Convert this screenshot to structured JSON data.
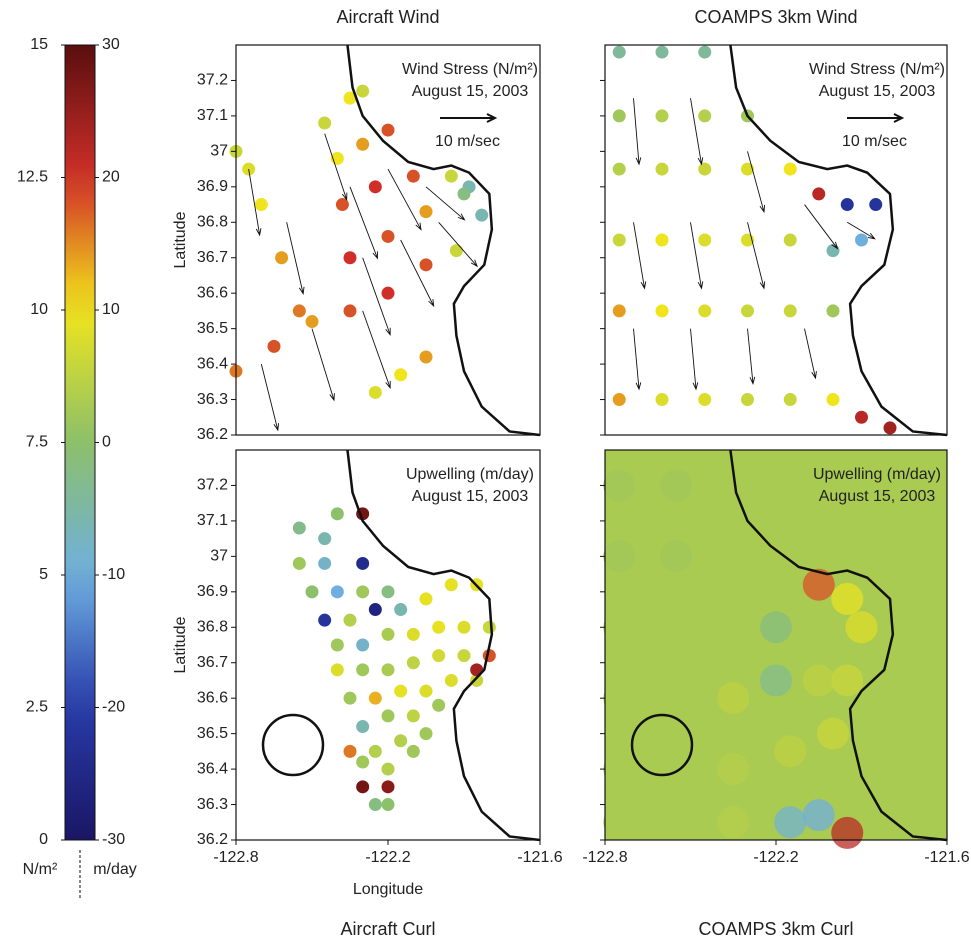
{
  "chart_data": [
    {
      "type": "colorbar",
      "left_lim": [
        0,
        15
      ],
      "left_ticks": [
        0,
        2.5,
        5,
        7.5,
        10,
        12.5,
        15
      ],
      "right_lim": [
        -30,
        30
      ],
      "right_ticks": [
        -30,
        -20,
        -10,
        0,
        10,
        20,
        30
      ],
      "left_unit": "N/m²",
      "right_unit": "m/day"
    },
    {
      "type": "scatter",
      "title": "Aircraft Wind",
      "annotation": [
        "Wind Stress (N/m²)",
        "August 15, 2003"
      ],
      "scale_label": "10 m/sec",
      "scale_value": 10,
      "ylabel": "Latitude",
      "colorbar": "left",
      "xlim": [
        -122.8,
        -121.6
      ],
      "ylim": [
        36.2,
        37.3
      ],
      "yticks": [
        36.2,
        36.3,
        36.4,
        36.5,
        36.6,
        36.7,
        36.8,
        36.9,
        37,
        37.1,
        37.2
      ],
      "x": [
        -122.8,
        -122.75,
        -122.7,
        -122.62,
        -122.55,
        -122.45,
        -122.35,
        -122.3,
        -122.4,
        -122.3,
        -122.2,
        -122.38,
        -122.25,
        -122.1,
        -121.95,
        -121.88,
        -122.35,
        -122.2,
        -122.05,
        -121.9,
        -121.83,
        -122.35,
        -122.2,
        -122.05,
        -121.93,
        -122.8,
        -122.65,
        -122.5,
        -122.25,
        -122.15,
        -122.05
      ],
      "y": [
        37.0,
        36.95,
        36.85,
        36.7,
        36.55,
        37.08,
        37.15,
        37.17,
        36.98,
        37.02,
        37.06,
        36.85,
        36.9,
        36.93,
        36.93,
        36.9,
        36.7,
        36.76,
        36.83,
        36.88,
        36.82,
        36.55,
        36.6,
        36.68,
        36.72,
        36.38,
        36.45,
        36.52,
        36.32,
        36.37,
        36.42
      ],
      "values": [
        9,
        9.5,
        10,
        11,
        11.5,
        9,
        10,
        9,
        10,
        11,
        12,
        12,
        12.5,
        12,
        9,
        6,
        12.5,
        12,
        11,
        7,
        6,
        12,
        12.5,
        12,
        9,
        11.5,
        12,
        11,
        9.5,
        10,
        11
      ],
      "vectors": {
        "x": [
          -122.75,
          -122.6,
          -122.45,
          -122.35,
          -122.2,
          -122.05,
          -122.3,
          -122.15,
          -122.0,
          -122.7,
          -122.5,
          -122.3
        ],
        "y": [
          36.95,
          36.8,
          37.05,
          36.9,
          36.95,
          36.9,
          36.7,
          36.75,
          36.8,
          36.4,
          36.5,
          36.55
        ],
        "u": [
          2,
          3,
          4,
          5,
          6,
          7,
          5,
          6,
          7,
          3,
          4,
          5
        ],
        "v": [
          -12,
          -13,
          -12,
          -13,
          -11,
          -6,
          -14,
          -12,
          -8,
          -12,
          -13,
          -14
        ]
      }
    },
    {
      "type": "scatter",
      "title": "COAMPS 3km Wind",
      "annotation": [
        "Wind Stress (N/m²)",
        "August 15, 2003"
      ],
      "scale_label": "10 m/sec",
      "scale_value": 10,
      "colorbar": "left",
      "xlim": [
        -122.8,
        -121.6
      ],
      "ylim": [
        36.2,
        37.3
      ],
      "yticks": [
        36.2,
        36.3,
        36.4,
        36.5,
        36.6,
        36.7,
        36.8,
        36.9,
        37,
        37.1,
        37.2
      ],
      "x": [
        -122.75,
        -122.6,
        -122.45,
        -122.75,
        -122.6,
        -122.45,
        -122.3,
        -122.75,
        -122.6,
        -122.45,
        -122.3,
        -122.15,
        -122.05,
        -121.95,
        -121.85,
        -122.75,
        -122.6,
        -122.45,
        -122.3,
        -122.15,
        -122.0,
        -121.9,
        -122.75,
        -122.6,
        -122.45,
        -122.3,
        -122.15,
        -122.0,
        -122.75,
        -122.6,
        -122.45,
        -122.3,
        -122.15,
        -122.0,
        -121.9,
        -121.8
      ],
      "y": [
        37.28,
        37.28,
        37.28,
        37.1,
        37.1,
        37.1,
        37.1,
        36.95,
        36.95,
        36.95,
        36.95,
        36.95,
        36.88,
        36.85,
        36.85,
        36.75,
        36.75,
        36.75,
        36.75,
        36.75,
        36.72,
        36.75,
        36.55,
        36.55,
        36.55,
        36.55,
        36.55,
        36.55,
        36.3,
        36.3,
        36.3,
        36.3,
        36.3,
        36.3,
        36.25,
        36.22
      ],
      "values": [
        6.5,
        6.5,
        6.5,
        8,
        8.5,
        8.5,
        8,
        8.5,
        9,
        9,
        9.5,
        10,
        13,
        2,
        2,
        9,
        10,
        9.5,
        9.5,
        9,
        6,
        5,
        11,
        10,
        9.5,
        9,
        9,
        8,
        11,
        9.5,
        9.5,
        9,
        9,
        10,
        13,
        13.5
      ],
      "vectors": {
        "x": [
          -122.7,
          -122.5,
          -122.3,
          -122.7,
          -122.5,
          -122.3,
          -122.1,
          -122.7,
          -122.5,
          -122.3,
          -122.1,
          -121.95
        ],
        "y": [
          37.15,
          37.15,
          37.0,
          36.8,
          36.8,
          36.8,
          36.85,
          36.5,
          36.5,
          36.5,
          36.5,
          36.8
        ],
        "u": [
          1,
          2,
          3,
          2,
          2,
          3,
          6,
          1,
          1,
          1,
          2,
          5
        ],
        "v": [
          -12,
          -12,
          -11,
          -12,
          -12,
          -12,
          -8,
          -11,
          -11,
          -10,
          -9,
          -3
        ]
      }
    },
    {
      "type": "scatter",
      "title": "Aircraft Curl",
      "annotation": [
        "Upwelling (m/day)",
        "August 15, 2003"
      ],
      "ylabel": "Latitude",
      "xlabel": "Longitude",
      "colorbar": "right",
      "xlim": [
        -122.8,
        -121.6
      ],
      "ylim": [
        36.2,
        37.3
      ],
      "yticks": [
        36.2,
        36.3,
        36.4,
        36.5,
        36.6,
        36.7,
        36.8,
        36.9,
        37,
        37.1,
        37.2
      ],
      "xticks": [
        -122.8,
        -122.2,
        -121.6
      ],
      "x": [
        -122.55,
        -122.45,
        -122.4,
        -122.3,
        -122.55,
        -122.45,
        -122.3,
        -122.5,
        -122.4,
        -122.3,
        -122.2,
        -122.45,
        -122.35,
        -122.25,
        -122.15,
        -122.05,
        -121.95,
        -121.85,
        -122.4,
        -122.3,
        -122.2,
        -122.1,
        -122.0,
        -121.9,
        -121.8,
        -122.4,
        -122.3,
        -122.2,
        -122.1,
        -122.0,
        -121.9,
        -121.8,
        -122.35,
        -122.25,
        -122.15,
        -122.05,
        -121.95,
        -121.85,
        -122.3,
        -122.2,
        -122.1,
        -122.0,
        -121.85,
        -122.35,
        -122.25,
        -122.15,
        -122.05,
        -122.3,
        -122.2,
        -122.1,
        -122.3,
        -122.2,
        -122.25,
        -122.2
      ],
      "y": [
        37.08,
        37.05,
        37.12,
        37.12,
        36.98,
        36.98,
        36.98,
        36.9,
        36.9,
        36.9,
        36.9,
        36.82,
        36.82,
        36.85,
        36.85,
        36.88,
        36.92,
        36.92,
        36.75,
        36.75,
        36.78,
        36.78,
        36.8,
        36.8,
        36.8,
        36.68,
        36.68,
        36.68,
        36.7,
        36.72,
        36.72,
        36.72,
        36.6,
        36.6,
        36.62,
        36.62,
        36.65,
        36.65,
        36.52,
        36.55,
        36.55,
        36.58,
        36.68,
        36.45,
        36.45,
        36.48,
        36.5,
        36.42,
        36.4,
        36.45,
        36.35,
        36.35,
        36.3,
        36.3
      ],
      "values": [
        -3,
        -6,
        0,
        28,
        2,
        -8,
        -24,
        0,
        -10,
        2,
        -2,
        -22,
        4,
        -26,
        -6,
        9,
        9,
        9,
        2,
        -8,
        3,
        8,
        9,
        8,
        6,
        8,
        2,
        3,
        5,
        7,
        6,
        18,
        2,
        13,
        9,
        8,
        8,
        6,
        -6,
        2,
        5,
        2,
        24,
        16,
        4,
        4,
        2,
        2,
        4,
        2,
        28,
        26,
        -2,
        0
      ]
    },
    {
      "type": "scatter",
      "title": "COAMPS 3km Curl",
      "annotation": [
        "Upwelling (m/day)",
        "August 15, 2003"
      ],
      "colorbar": "right",
      "xlim": [
        -122.8,
        -121.6
      ],
      "ylim": [
        36.2,
        37.3
      ],
      "yticks": [
        36.2,
        36.3,
        36.4,
        36.5,
        36.6,
        36.7,
        36.8,
        36.9,
        37,
        37.1,
        37.2
      ],
      "xticks": [
        -122.8,
        -122.2,
        -121.6
      ],
      "x": [
        -122.75,
        -122.55,
        -122.4,
        -122.75,
        -122.55,
        -122.35,
        -122.25,
        -122.75,
        -122.55,
        -122.35,
        -122.2,
        -122.05,
        -121.95,
        -121.9,
        -122.75,
        -122.55,
        -122.35,
        -122.2,
        -122.05,
        -121.95,
        -122.75,
        -122.55,
        -122.35,
        -122.15,
        -122.0,
        -122.75,
        -122.55,
        -122.35,
        -122.15,
        -122.05,
        -121.95
      ],
      "y": [
        37.2,
        37.2,
        37.2,
        37.0,
        37.0,
        37.0,
        37.0,
        36.8,
        36.8,
        36.8,
        36.8,
        36.92,
        36.88,
        36.8,
        36.6,
        36.6,
        36.6,
        36.65,
        36.65,
        36.65,
        36.4,
        36.4,
        36.4,
        36.45,
        36.5,
        36.25,
        36.25,
        36.25,
        36.25,
        36.27,
        36.22
      ],
      "values": [
        2,
        2,
        3,
        2,
        2,
        3,
        3,
        3,
        3,
        3,
        -2,
        18,
        9,
        8,
        3,
        3,
        5,
        -3,
        5,
        6,
        3,
        3,
        4,
        5,
        6,
        3,
        3,
        4,
        -9,
        -10,
        22
      ]
    }
  ]
}
